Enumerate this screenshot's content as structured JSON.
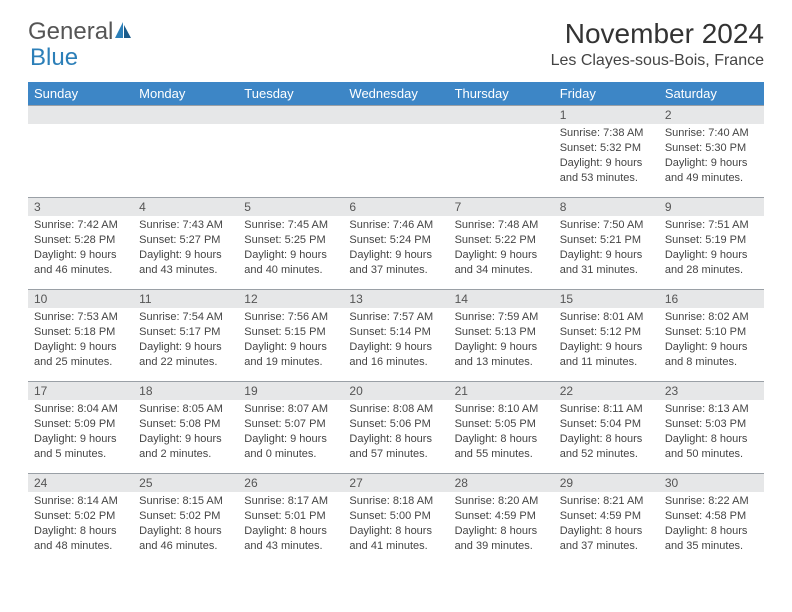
{
  "logo": {
    "text1": "General",
    "text2": "Blue"
  },
  "title": "November 2024",
  "location": "Les Clayes-sous-Bois, France",
  "weekdays": [
    "Sunday",
    "Monday",
    "Tuesday",
    "Wednesday",
    "Thursday",
    "Friday",
    "Saturday"
  ],
  "colors": {
    "header_bg": "#3d86c6",
    "header_text": "#ffffff",
    "daynum_bg": "#e6e7e8",
    "cell_border": "#9aa0a6",
    "logo_gray": "#555555",
    "logo_blue": "#2c7fb8"
  },
  "weeks": [
    [
      {
        "day": "",
        "sunrise": "",
        "sunset": "",
        "daylight": ""
      },
      {
        "day": "",
        "sunrise": "",
        "sunset": "",
        "daylight": ""
      },
      {
        "day": "",
        "sunrise": "",
        "sunset": "",
        "daylight": ""
      },
      {
        "day": "",
        "sunrise": "",
        "sunset": "",
        "daylight": ""
      },
      {
        "day": "",
        "sunrise": "",
        "sunset": "",
        "daylight": ""
      },
      {
        "day": "1",
        "sunrise": "Sunrise: 7:38 AM",
        "sunset": "Sunset: 5:32 PM",
        "daylight": "Daylight: 9 hours and 53 minutes."
      },
      {
        "day": "2",
        "sunrise": "Sunrise: 7:40 AM",
        "sunset": "Sunset: 5:30 PM",
        "daylight": "Daylight: 9 hours and 49 minutes."
      }
    ],
    [
      {
        "day": "3",
        "sunrise": "Sunrise: 7:42 AM",
        "sunset": "Sunset: 5:28 PM",
        "daylight": "Daylight: 9 hours and 46 minutes."
      },
      {
        "day": "4",
        "sunrise": "Sunrise: 7:43 AM",
        "sunset": "Sunset: 5:27 PM",
        "daylight": "Daylight: 9 hours and 43 minutes."
      },
      {
        "day": "5",
        "sunrise": "Sunrise: 7:45 AM",
        "sunset": "Sunset: 5:25 PM",
        "daylight": "Daylight: 9 hours and 40 minutes."
      },
      {
        "day": "6",
        "sunrise": "Sunrise: 7:46 AM",
        "sunset": "Sunset: 5:24 PM",
        "daylight": "Daylight: 9 hours and 37 minutes."
      },
      {
        "day": "7",
        "sunrise": "Sunrise: 7:48 AM",
        "sunset": "Sunset: 5:22 PM",
        "daylight": "Daylight: 9 hours and 34 minutes."
      },
      {
        "day": "8",
        "sunrise": "Sunrise: 7:50 AM",
        "sunset": "Sunset: 5:21 PM",
        "daylight": "Daylight: 9 hours and 31 minutes."
      },
      {
        "day": "9",
        "sunrise": "Sunrise: 7:51 AM",
        "sunset": "Sunset: 5:19 PM",
        "daylight": "Daylight: 9 hours and 28 minutes."
      }
    ],
    [
      {
        "day": "10",
        "sunrise": "Sunrise: 7:53 AM",
        "sunset": "Sunset: 5:18 PM",
        "daylight": "Daylight: 9 hours and 25 minutes."
      },
      {
        "day": "11",
        "sunrise": "Sunrise: 7:54 AM",
        "sunset": "Sunset: 5:17 PM",
        "daylight": "Daylight: 9 hours and 22 minutes."
      },
      {
        "day": "12",
        "sunrise": "Sunrise: 7:56 AM",
        "sunset": "Sunset: 5:15 PM",
        "daylight": "Daylight: 9 hours and 19 minutes."
      },
      {
        "day": "13",
        "sunrise": "Sunrise: 7:57 AM",
        "sunset": "Sunset: 5:14 PM",
        "daylight": "Daylight: 9 hours and 16 minutes."
      },
      {
        "day": "14",
        "sunrise": "Sunrise: 7:59 AM",
        "sunset": "Sunset: 5:13 PM",
        "daylight": "Daylight: 9 hours and 13 minutes."
      },
      {
        "day": "15",
        "sunrise": "Sunrise: 8:01 AM",
        "sunset": "Sunset: 5:12 PM",
        "daylight": "Daylight: 9 hours and 11 minutes."
      },
      {
        "day": "16",
        "sunrise": "Sunrise: 8:02 AM",
        "sunset": "Sunset: 5:10 PM",
        "daylight": "Daylight: 9 hours and 8 minutes."
      }
    ],
    [
      {
        "day": "17",
        "sunrise": "Sunrise: 8:04 AM",
        "sunset": "Sunset: 5:09 PM",
        "daylight": "Daylight: 9 hours and 5 minutes."
      },
      {
        "day": "18",
        "sunrise": "Sunrise: 8:05 AM",
        "sunset": "Sunset: 5:08 PM",
        "daylight": "Daylight: 9 hours and 2 minutes."
      },
      {
        "day": "19",
        "sunrise": "Sunrise: 8:07 AM",
        "sunset": "Sunset: 5:07 PM",
        "daylight": "Daylight: 9 hours and 0 minutes."
      },
      {
        "day": "20",
        "sunrise": "Sunrise: 8:08 AM",
        "sunset": "Sunset: 5:06 PM",
        "daylight": "Daylight: 8 hours and 57 minutes."
      },
      {
        "day": "21",
        "sunrise": "Sunrise: 8:10 AM",
        "sunset": "Sunset: 5:05 PM",
        "daylight": "Daylight: 8 hours and 55 minutes."
      },
      {
        "day": "22",
        "sunrise": "Sunrise: 8:11 AM",
        "sunset": "Sunset: 5:04 PM",
        "daylight": "Daylight: 8 hours and 52 minutes."
      },
      {
        "day": "23",
        "sunrise": "Sunrise: 8:13 AM",
        "sunset": "Sunset: 5:03 PM",
        "daylight": "Daylight: 8 hours and 50 minutes."
      }
    ],
    [
      {
        "day": "24",
        "sunrise": "Sunrise: 8:14 AM",
        "sunset": "Sunset: 5:02 PM",
        "daylight": "Daylight: 8 hours and 48 minutes."
      },
      {
        "day": "25",
        "sunrise": "Sunrise: 8:15 AM",
        "sunset": "Sunset: 5:02 PM",
        "daylight": "Daylight: 8 hours and 46 minutes."
      },
      {
        "day": "26",
        "sunrise": "Sunrise: 8:17 AM",
        "sunset": "Sunset: 5:01 PM",
        "daylight": "Daylight: 8 hours and 43 minutes."
      },
      {
        "day": "27",
        "sunrise": "Sunrise: 8:18 AM",
        "sunset": "Sunset: 5:00 PM",
        "daylight": "Daylight: 8 hours and 41 minutes."
      },
      {
        "day": "28",
        "sunrise": "Sunrise: 8:20 AM",
        "sunset": "Sunset: 4:59 PM",
        "daylight": "Daylight: 8 hours and 39 minutes."
      },
      {
        "day": "29",
        "sunrise": "Sunrise: 8:21 AM",
        "sunset": "Sunset: 4:59 PM",
        "daylight": "Daylight: 8 hours and 37 minutes."
      },
      {
        "day": "30",
        "sunrise": "Sunrise: 8:22 AM",
        "sunset": "Sunset: 4:58 PM",
        "daylight": "Daylight: 8 hours and 35 minutes."
      }
    ]
  ]
}
